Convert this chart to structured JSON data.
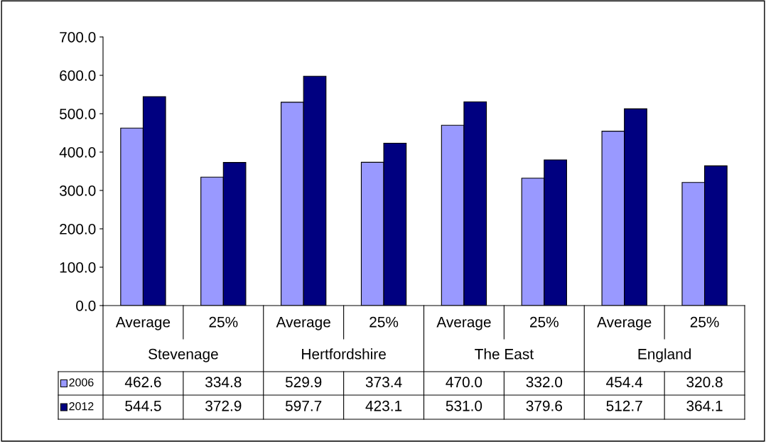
{
  "chart_data": {
    "type": "bar",
    "categories": [
      "Average",
      "25%",
      "Average",
      "25%",
      "Average",
      "25%",
      "Average",
      "25%"
    ],
    "annotations": [
      "Stevenage",
      "Hertfordshire",
      "The East",
      "England"
    ],
    "series": [
      {
        "name": "2006",
        "color": "#9999ff",
        "values": [
          462.6,
          334.8,
          529.9,
          373.4,
          470.0,
          332.0,
          454.4,
          320.8
        ],
        "value_labels": [
          "462.6",
          "334.8",
          "529.9",
          "373.4",
          "470.0",
          "332.0",
          "454.4",
          "320.8"
        ]
      },
      {
        "name": "2012",
        "color": "#000080",
        "values": [
          544.5,
          372.9,
          597.7,
          423.1,
          531.0,
          379.6,
          512.7,
          364.1
        ],
        "value_labels": [
          "544.5",
          "372.9",
          "597.7",
          "423.1",
          "531.0",
          "379.6",
          "512.7",
          "364.1"
        ]
      }
    ],
    "ylim": [
      0,
      700
    ],
    "yticks": [
      {
        "value": 0,
        "label": "0.0"
      },
      {
        "value": 100,
        "label": "100.0"
      },
      {
        "value": 200,
        "label": "200.0"
      },
      {
        "value": 300,
        "label": "300.0"
      },
      {
        "value": 400,
        "label": "400.0"
      },
      {
        "value": 500,
        "label": "500.0"
      },
      {
        "value": 600,
        "label": "600.0"
      },
      {
        "value": 700,
        "label": "700.0"
      }
    ],
    "grid": false,
    "legend": "bottom left"
  }
}
